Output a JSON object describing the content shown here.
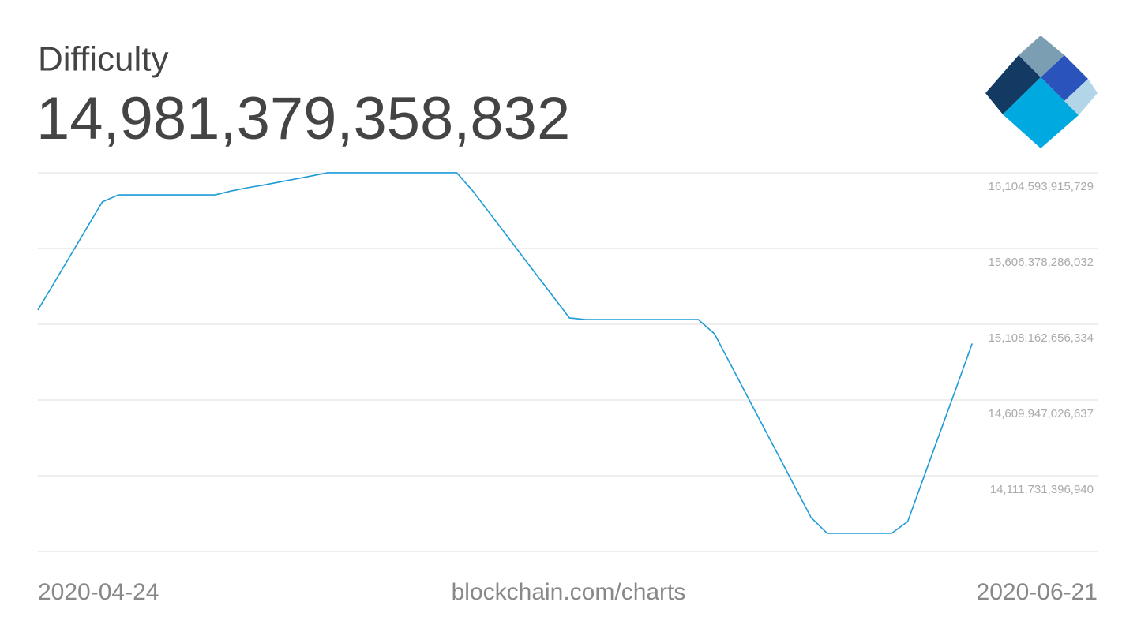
{
  "chart_data": {
    "type": "line",
    "title": "Difficulty",
    "headline": "14,981,379,358,832",
    "source": "blockchain.com/charts",
    "categories": [
      "2020-04-24",
      null,
      null,
      null,
      null,
      null,
      null,
      null,
      null,
      null,
      null,
      null,
      null,
      null,
      null,
      null,
      null,
      null,
      null,
      null,
      null,
      null,
      null,
      null,
      null,
      null,
      null,
      null,
      null,
      null,
      null,
      null,
      null,
      null,
      null,
      null,
      null,
      null,
      null,
      null,
      null,
      null,
      null,
      null,
      null,
      null,
      null,
      null,
      null,
      null,
      null,
      null,
      null,
      null,
      null,
      null,
      null,
      null,
      "2020-06-21"
    ],
    "values": [
      15202000000000,
      15379000000000,
      15557000000000,
      15735000000000,
      15913000000000,
      15959000000000,
      15959000000000,
      15959000000000,
      15959000000000,
      15959000000000,
      15959000000000,
      15959000000000,
      15985000000000,
      16006000000000,
      16024000000000,
      16044000000000,
      16064000000000,
      16084000000000,
      16105000000000,
      16105000000000,
      16105000000000,
      16105000000000,
      16105000000000,
      16105000000000,
      16105000000000,
      16105000000000,
      16105000000000,
      15985000000000,
      15846000000000,
      15707000000000,
      15567000000000,
      15428000000000,
      15289000000000,
      15150000000000,
      15139000000000,
      15139000000000,
      15139000000000,
      15139000000000,
      15139000000000,
      15139000000000,
      15139000000000,
      15139000000000,
      15046000000000,
      14845000000000,
      14643000000000,
      14441000000000,
      14240000000000,
      14038000000000,
      13837000000000,
      13733000000000,
      13733000000000,
      13733000000000,
      13733000000000,
      13733000000000,
      13811000000000,
      14103000000000,
      14395000000000,
      14686000000000,
      14981379358832
    ],
    "color": "#1e9bd7",
    "ylim": [
      13613515767243,
      16104593915729
    ],
    "yticks": [
      {
        "value": 16104593915729,
        "label": "16,104,593,915,729"
      },
      {
        "value": 15606378286032,
        "label": "15,606,378,286,032"
      },
      {
        "value": 15108162656334,
        "label": "15,108,162,656,334"
      },
      {
        "value": 14609947026637,
        "label": "14,609,947,026,637"
      },
      {
        "value": 14111731396940,
        "label": "14,111,731,396,940"
      }
    ],
    "grid": true
  }
}
